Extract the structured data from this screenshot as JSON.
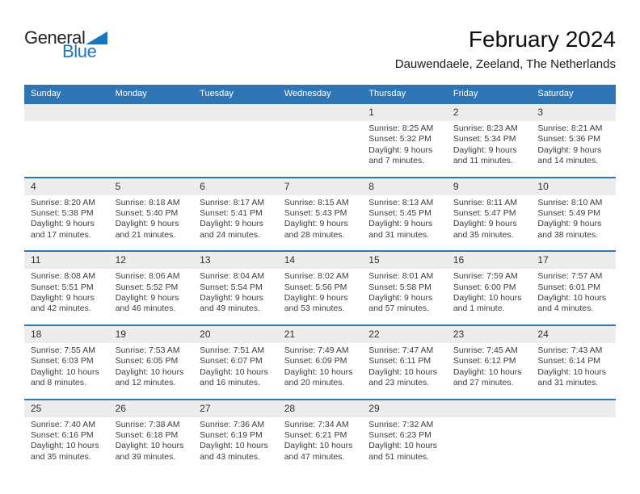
{
  "logo": {
    "text_top": "General",
    "text_bottom": "Blue"
  },
  "header": {
    "title": "February 2024",
    "subtitle": "Dauwendaele, Zeeland, The Netherlands"
  },
  "colors": {
    "header_bg": "#2E75B6",
    "row_border": "#2E75B6",
    "number_band_bg": "#EDEDED",
    "logo_blue": "#1B75BC",
    "header_text": "#FFFFFF",
    "body_text": "#3D3D3D"
  },
  "weekday_headers": [
    "Sunday",
    "Monday",
    "Tuesday",
    "Wednesday",
    "Thursday",
    "Friday",
    "Saturday"
  ],
  "weeks": [
    [
      null,
      null,
      null,
      null,
      {
        "day": "1",
        "sunrise": "Sunrise: 8:25 AM",
        "sunset": "Sunset: 5:32 PM",
        "daylight": [
          "Daylight: 9 hours",
          "and 7 minutes."
        ]
      },
      {
        "day": "2",
        "sunrise": "Sunrise: 8:23 AM",
        "sunset": "Sunset: 5:34 PM",
        "daylight": [
          "Daylight: 9 hours",
          "and 11 minutes."
        ]
      },
      {
        "day": "3",
        "sunrise": "Sunrise: 8:21 AM",
        "sunset": "Sunset: 5:36 PM",
        "daylight": [
          "Daylight: 9 hours",
          "and 14 minutes."
        ]
      }
    ],
    [
      {
        "day": "4",
        "sunrise": "Sunrise: 8:20 AM",
        "sunset": "Sunset: 5:38 PM",
        "daylight": [
          "Daylight: 9 hours",
          "and 17 minutes."
        ]
      },
      {
        "day": "5",
        "sunrise": "Sunrise: 8:18 AM",
        "sunset": "Sunset: 5:40 PM",
        "daylight": [
          "Daylight: 9 hours",
          "and 21 minutes."
        ]
      },
      {
        "day": "6",
        "sunrise": "Sunrise: 8:17 AM",
        "sunset": "Sunset: 5:41 PM",
        "daylight": [
          "Daylight: 9 hours",
          "and 24 minutes."
        ]
      },
      {
        "day": "7",
        "sunrise": "Sunrise: 8:15 AM",
        "sunset": "Sunset: 5:43 PM",
        "daylight": [
          "Daylight: 9 hours",
          "and 28 minutes."
        ]
      },
      {
        "day": "8",
        "sunrise": "Sunrise: 8:13 AM",
        "sunset": "Sunset: 5:45 PM",
        "daylight": [
          "Daylight: 9 hours",
          "and 31 minutes."
        ]
      },
      {
        "day": "9",
        "sunrise": "Sunrise: 8:11 AM",
        "sunset": "Sunset: 5:47 PM",
        "daylight": [
          "Daylight: 9 hours",
          "and 35 minutes."
        ]
      },
      {
        "day": "10",
        "sunrise": "Sunrise: 8:10 AM",
        "sunset": "Sunset: 5:49 PM",
        "daylight": [
          "Daylight: 9 hours",
          "and 38 minutes."
        ]
      }
    ],
    [
      {
        "day": "11",
        "sunrise": "Sunrise: 8:08 AM",
        "sunset": "Sunset: 5:51 PM",
        "daylight": [
          "Daylight: 9 hours",
          "and 42 minutes."
        ]
      },
      {
        "day": "12",
        "sunrise": "Sunrise: 8:06 AM",
        "sunset": "Sunset: 5:52 PM",
        "daylight": [
          "Daylight: 9 hours",
          "and 46 minutes."
        ]
      },
      {
        "day": "13",
        "sunrise": "Sunrise: 8:04 AM",
        "sunset": "Sunset: 5:54 PM",
        "daylight": [
          "Daylight: 9 hours",
          "and 49 minutes."
        ]
      },
      {
        "day": "14",
        "sunrise": "Sunrise: 8:02 AM",
        "sunset": "Sunset: 5:56 PM",
        "daylight": [
          "Daylight: 9 hours",
          "and 53 minutes."
        ]
      },
      {
        "day": "15",
        "sunrise": "Sunrise: 8:01 AM",
        "sunset": "Sunset: 5:58 PM",
        "daylight": [
          "Daylight: 9 hours",
          "and 57 minutes."
        ]
      },
      {
        "day": "16",
        "sunrise": "Sunrise: 7:59 AM",
        "sunset": "Sunset: 6:00 PM",
        "daylight": [
          "Daylight: 10 hours",
          "and 1 minute."
        ]
      },
      {
        "day": "17",
        "sunrise": "Sunrise: 7:57 AM",
        "sunset": "Sunset: 6:01 PM",
        "daylight": [
          "Daylight: 10 hours",
          "and 4 minutes."
        ]
      }
    ],
    [
      {
        "day": "18",
        "sunrise": "Sunrise: 7:55 AM",
        "sunset": "Sunset: 6:03 PM",
        "daylight": [
          "Daylight: 10 hours",
          "and 8 minutes."
        ]
      },
      {
        "day": "19",
        "sunrise": "Sunrise: 7:53 AM",
        "sunset": "Sunset: 6:05 PM",
        "daylight": [
          "Daylight: 10 hours",
          "and 12 minutes."
        ]
      },
      {
        "day": "20",
        "sunrise": "Sunrise: 7:51 AM",
        "sunset": "Sunset: 6:07 PM",
        "daylight": [
          "Daylight: 10 hours",
          "and 16 minutes."
        ]
      },
      {
        "day": "21",
        "sunrise": "Sunrise: 7:49 AM",
        "sunset": "Sunset: 6:09 PM",
        "daylight": [
          "Daylight: 10 hours",
          "and 20 minutes."
        ]
      },
      {
        "day": "22",
        "sunrise": "Sunrise: 7:47 AM",
        "sunset": "Sunset: 6:11 PM",
        "daylight": [
          "Daylight: 10 hours",
          "and 23 minutes."
        ]
      },
      {
        "day": "23",
        "sunrise": "Sunrise: 7:45 AM",
        "sunset": "Sunset: 6:12 PM",
        "daylight": [
          "Daylight: 10 hours",
          "and 27 minutes."
        ]
      },
      {
        "day": "24",
        "sunrise": "Sunrise: 7:43 AM",
        "sunset": "Sunset: 6:14 PM",
        "daylight": [
          "Daylight: 10 hours",
          "and 31 minutes."
        ]
      }
    ],
    [
      {
        "day": "25",
        "sunrise": "Sunrise: 7:40 AM",
        "sunset": "Sunset: 6:16 PM",
        "daylight": [
          "Daylight: 10 hours",
          "and 35 minutes."
        ]
      },
      {
        "day": "26",
        "sunrise": "Sunrise: 7:38 AM",
        "sunset": "Sunset: 6:18 PM",
        "daylight": [
          "Daylight: 10 hours",
          "and 39 minutes."
        ]
      },
      {
        "day": "27",
        "sunrise": "Sunrise: 7:36 AM",
        "sunset": "Sunset: 6:19 PM",
        "daylight": [
          "Daylight: 10 hours",
          "and 43 minutes."
        ]
      },
      {
        "day": "28",
        "sunrise": "Sunrise: 7:34 AM",
        "sunset": "Sunset: 6:21 PM",
        "daylight": [
          "Daylight: 10 hours",
          "and 47 minutes."
        ]
      },
      {
        "day": "29",
        "sunrise": "Sunrise: 7:32 AM",
        "sunset": "Sunset: 6:23 PM",
        "daylight": [
          "Daylight: 10 hours",
          "and 51 minutes."
        ]
      },
      null,
      null
    ]
  ]
}
